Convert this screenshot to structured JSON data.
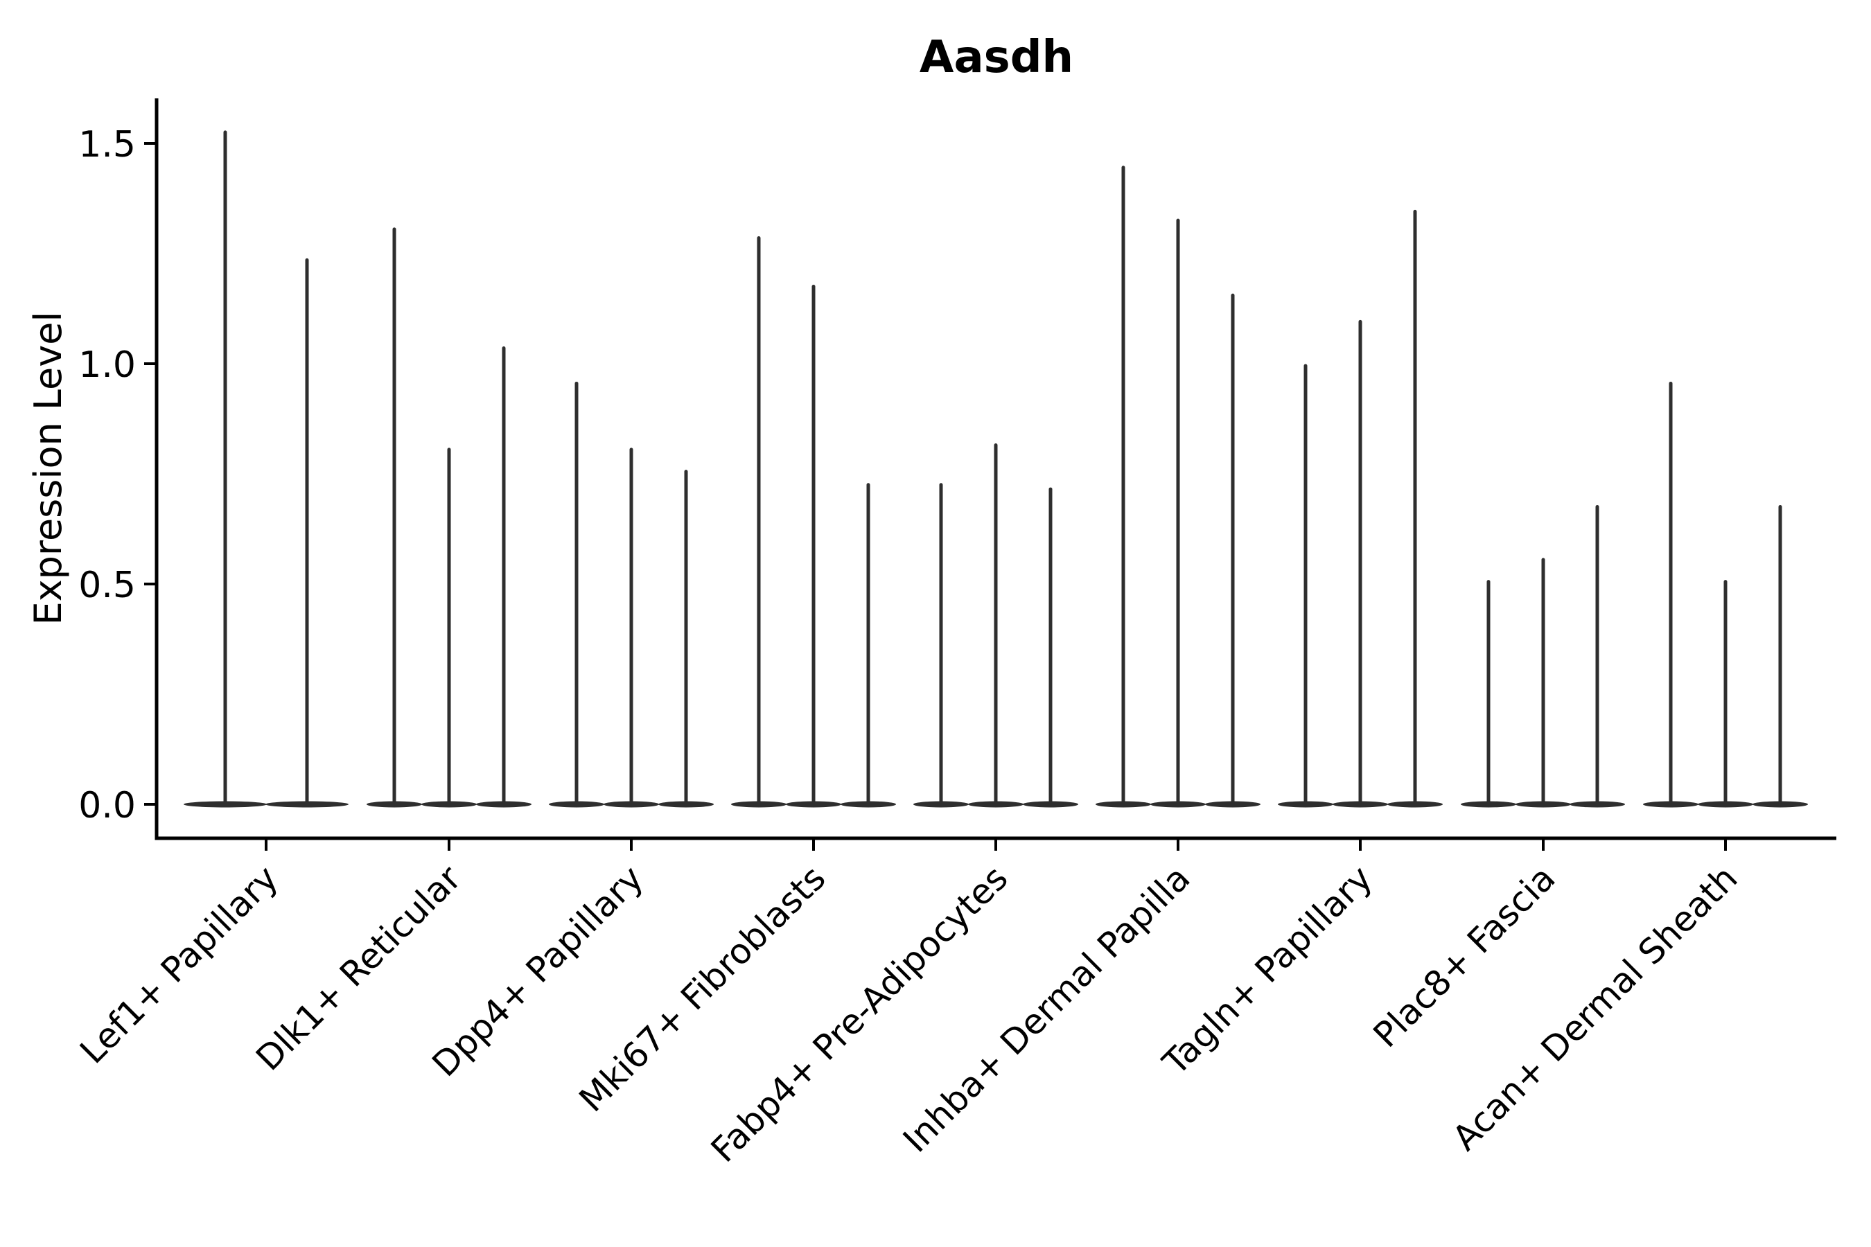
{
  "figure": {
    "title": "Aasdh",
    "ylabel": "Expression Level",
    "background_color": "#ffffff",
    "axis_color": "#000000",
    "violin_color": "#2e2e2e"
  },
  "chart_data": {
    "type": "violin",
    "title": "Aasdh",
    "xlabel": "",
    "ylabel": "Expression Level",
    "ylim": [
      -0.077,
      1.602
    ],
    "yticks": [
      0.0,
      0.5,
      1.0,
      1.5
    ],
    "ytick_labels": [
      "0.0",
      "0.5",
      "1.0",
      "1.5"
    ],
    "grid": false,
    "legend": "none",
    "categories": [
      "Lef1+ Papillary",
      "Dlk1+ Reticular",
      "Dpp4+ Papillary",
      "Mki67+ Fibroblasts",
      "Fabp4+ Pre-Adipocytes",
      "Inhba+ Dermal Papilla",
      "Tagln+ Papillary",
      "Plac8+ Fascia",
      "Acan+ Dermal Sheath"
    ],
    "description": "Needle-thin violins: wide flat base at expression 0 with a thin spike rising to the max expression value",
    "groups": [
      {
        "label": "Lef1+ Papillary",
        "tick_x": 384,
        "violins": [
          {
            "x": 325,
            "max": 1.53,
            "half_width": 60
          },
          {
            "x": 443,
            "max": 1.24,
            "half_width": 60
          }
        ]
      },
      {
        "label": "Dlk1+ Reticular",
        "tick_x": 648,
        "violins": [
          {
            "x": 569,
            "max": 1.31,
            "half_width": 40
          },
          {
            "x": 648,
            "max": 0.81,
            "half_width": 40
          },
          {
            "x": 727,
            "max": 1.04,
            "half_width": 40
          }
        ]
      },
      {
        "label": "Dpp4+ Papillary",
        "tick_x": 911,
        "violins": [
          {
            "x": 832,
            "max": 0.96,
            "half_width": 40
          },
          {
            "x": 911,
            "max": 0.81,
            "half_width": 40
          },
          {
            "x": 990,
            "max": 0.76,
            "half_width": 40
          }
        ]
      },
      {
        "label": "Mki67+ Fibroblasts",
        "tick_x": 1174,
        "violins": [
          {
            "x": 1095,
            "max": 1.29,
            "half_width": 40
          },
          {
            "x": 1174,
            "max": 1.18,
            "half_width": 40
          },
          {
            "x": 1253,
            "max": 0.73,
            "half_width": 40
          }
        ]
      },
      {
        "label": "Fabp4+ Pre-Adipocytes",
        "tick_x": 1437,
        "violins": [
          {
            "x": 1358,
            "max": 0.73,
            "half_width": 40
          },
          {
            "x": 1437,
            "max": 0.82,
            "half_width": 40
          },
          {
            "x": 1516,
            "max": 0.72,
            "half_width": 40
          }
        ]
      },
      {
        "label": "Inhba+ Dermal Papilla",
        "tick_x": 1700,
        "violins": [
          {
            "x": 1621,
            "max": 1.45,
            "half_width": 40
          },
          {
            "x": 1700,
            "max": 1.33,
            "half_width": 40
          },
          {
            "x": 1779,
            "max": 1.16,
            "half_width": 40
          }
        ]
      },
      {
        "label": "Tagln+ Papillary",
        "tick_x": 1963,
        "violins": [
          {
            "x": 1884,
            "max": 1.0,
            "half_width": 40
          },
          {
            "x": 1963,
            "max": 1.1,
            "half_width": 40
          },
          {
            "x": 2042,
            "max": 1.35,
            "half_width": 40
          }
        ]
      },
      {
        "label": "Plac8+ Fascia",
        "tick_x": 2227,
        "violins": [
          {
            "x": 2148,
            "max": 0.51,
            "half_width": 40
          },
          {
            "x": 2227,
            "max": 0.56,
            "half_width": 40
          },
          {
            "x": 2305,
            "max": 0.68,
            "half_width": 40
          }
        ]
      },
      {
        "label": "Acan+ Dermal Sheath",
        "tick_x": 2490,
        "violins": [
          {
            "x": 2411,
            "max": 0.96,
            "half_width": 40
          },
          {
            "x": 2490,
            "max": 0.51,
            "half_width": 40
          },
          {
            "x": 2569,
            "max": 0.68,
            "half_width": 40
          }
        ]
      }
    ]
  }
}
